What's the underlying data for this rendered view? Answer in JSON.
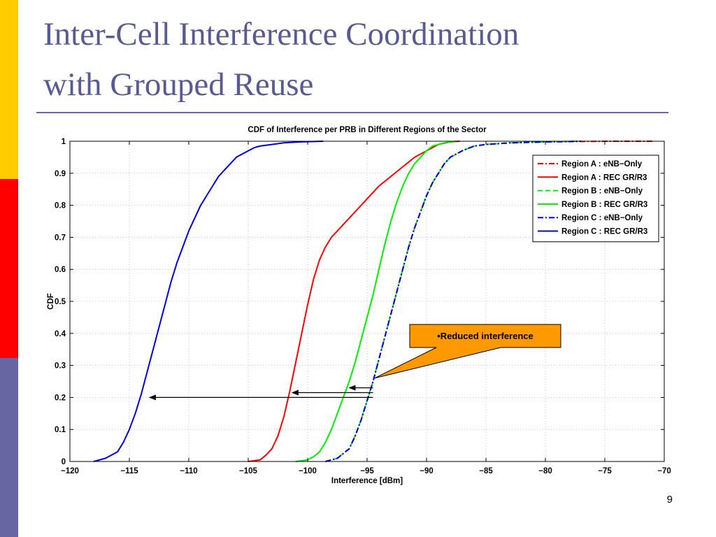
{
  "slide": {
    "title_line1": "Inter-Cell Interference Coordination",
    "title_line2": "with Grouped Reuse",
    "page_number": "9",
    "accent_colors": {
      "yellow": "#ffcc00",
      "red": "#ff0000",
      "blue": "#6666a3"
    }
  },
  "chart_data": {
    "type": "line",
    "title": "CDF of Interference per PRB in Different Regions of the Sector",
    "xlabel": "Interference [dBm]",
    "ylabel": "CDF",
    "xlim": [
      -120,
      -70
    ],
    "ylim": [
      0,
      1
    ],
    "xticks": [
      -120,
      -115,
      -110,
      -105,
      -100,
      -95,
      -90,
      -85,
      -80,
      -75,
      -70
    ],
    "yticks": [
      0,
      0.1,
      0.2,
      0.3,
      0.4,
      0.5,
      0.6,
      0.7,
      0.8,
      0.9,
      1
    ],
    "grid": true,
    "legend_position": "top-right",
    "series": [
      {
        "name": "Region A : eNB−Only",
        "color": "#ff0000",
        "dash": "dashdot",
        "x": [
          -98.5,
          -97.5,
          -96.5,
          -96,
          -95.5,
          -95,
          -94.5,
          -94,
          -93.5,
          -93,
          -92.5,
          -92,
          -91.5,
          -91,
          -90.5,
          -90,
          -89.5,
          -89,
          -88.5,
          -88,
          -87,
          -86,
          -85,
          -83,
          -80,
          -75,
          -71
        ],
        "y": [
          0,
          0.01,
          0.04,
          0.08,
          0.13,
          0.19,
          0.25,
          0.32,
          0.39,
          0.46,
          0.53,
          0.6,
          0.67,
          0.73,
          0.78,
          0.83,
          0.87,
          0.9,
          0.93,
          0.95,
          0.97,
          0.985,
          0.99,
          0.995,
          0.998,
          1,
          1
        ]
      },
      {
        "name": "Region A : REC GR/R3",
        "color": "#ff0000",
        "dash": "solid",
        "x": [
          -105,
          -104,
          -103.5,
          -103,
          -102.5,
          -102,
          -101.5,
          -101,
          -100.5,
          -100,
          -99.5,
          -99,
          -98.5,
          -98,
          -97,
          -96,
          -95,
          -94,
          -93,
          -92,
          -91,
          -90,
          -89,
          -88,
          -87.2
        ],
        "y": [
          0,
          0.005,
          0.02,
          0.04,
          0.08,
          0.14,
          0.22,
          0.31,
          0.4,
          0.49,
          0.57,
          0.63,
          0.67,
          0.7,
          0.74,
          0.78,
          0.82,
          0.86,
          0.89,
          0.92,
          0.95,
          0.97,
          0.99,
          0.998,
          1
        ]
      },
      {
        "name": "Region B : eNB−Only",
        "color": "#00ee00",
        "dash": "dashed",
        "x": [
          -98.5,
          -97.5,
          -96.5,
          -96,
          -95.5,
          -95,
          -94.5,
          -94,
          -93.5,
          -93,
          -92.5,
          -92,
          -91.5,
          -91,
          -90.5,
          -90,
          -89.5,
          -89,
          -88.5,
          -88,
          -87,
          -86,
          -85,
          -83,
          -80,
          -77
        ],
        "y": [
          0,
          0.01,
          0.04,
          0.08,
          0.13,
          0.19,
          0.25,
          0.32,
          0.39,
          0.46,
          0.53,
          0.6,
          0.67,
          0.73,
          0.78,
          0.83,
          0.87,
          0.9,
          0.93,
          0.95,
          0.97,
          0.985,
          0.99,
          0.995,
          0.998,
          1
        ]
      },
      {
        "name": "Region B : REC GR/R3",
        "color": "#00ee00",
        "dash": "solid",
        "x": [
          -101,
          -100,
          -99.5,
          -99,
          -98.5,
          -98,
          -97.5,
          -97,
          -96.5,
          -96,
          -95.5,
          -95,
          -94.5,
          -94,
          -93.5,
          -93,
          -92.5,
          -92,
          -91.5,
          -91,
          -90.5,
          -90,
          -89.5,
          -89,
          -88.5,
          -88,
          -87.5
        ],
        "y": [
          0,
          0.005,
          0.015,
          0.03,
          0.06,
          0.1,
          0.15,
          0.2,
          0.25,
          0.31,
          0.38,
          0.45,
          0.52,
          0.6,
          0.68,
          0.75,
          0.81,
          0.86,
          0.9,
          0.93,
          0.95,
          0.97,
          0.985,
          0.99,
          0.995,
          0.998,
          1
        ]
      },
      {
        "name": "Region C : eNB−Only",
        "color": "#0000dd",
        "dash": "dashdot",
        "x": [
          -98.5,
          -97.5,
          -96.5,
          -96,
          -95.5,
          -95,
          -94.5,
          -94,
          -93.5,
          -93,
          -92.5,
          -92,
          -91.5,
          -91,
          -90.5,
          -90,
          -89.5,
          -89,
          -88.5,
          -88,
          -87,
          -86,
          -85,
          -83,
          -80,
          -77
        ],
        "y": [
          0,
          0.01,
          0.04,
          0.08,
          0.13,
          0.19,
          0.25,
          0.32,
          0.39,
          0.46,
          0.53,
          0.6,
          0.67,
          0.73,
          0.78,
          0.83,
          0.87,
          0.9,
          0.93,
          0.95,
          0.97,
          0.985,
          0.99,
          0.995,
          0.998,
          1
        ]
      },
      {
        "name": "Region C : REC GR/R3",
        "color": "#0000dd",
        "dash": "solid",
        "x": [
          -118,
          -117,
          -116,
          -115.5,
          -115,
          -114.5,
          -114,
          -113.5,
          -113,
          -112.5,
          -112,
          -111.5,
          -111,
          -110.5,
          -110,
          -109.5,
          -109,
          -108.5,
          -108,
          -107.5,
          -107,
          -106.5,
          -106,
          -105.5,
          -105,
          -104.5,
          -104,
          -103,
          -102,
          -100.5,
          -98.7
        ],
        "y": [
          0,
          0.01,
          0.03,
          0.06,
          0.1,
          0.15,
          0.21,
          0.28,
          0.35,
          0.42,
          0.49,
          0.56,
          0.62,
          0.67,
          0.72,
          0.76,
          0.8,
          0.83,
          0.86,
          0.89,
          0.91,
          0.93,
          0.95,
          0.96,
          0.97,
          0.98,
          0.985,
          0.99,
          0.995,
          0.998,
          1
        ]
      }
    ],
    "annotations": [
      {
        "text": "•Reduced interference",
        "fill": "#ff9900"
      }
    ],
    "arrows": [
      {
        "from": [
          -94.5,
          0.23
        ],
        "to": [
          -96.5,
          0.23
        ]
      },
      {
        "from": [
          -94.5,
          0.215
        ],
        "to": [
          -101.3,
          0.215
        ]
      },
      {
        "from": [
          -94.5,
          0.2
        ],
        "to": [
          -113.3,
          0.2
        ]
      }
    ]
  }
}
